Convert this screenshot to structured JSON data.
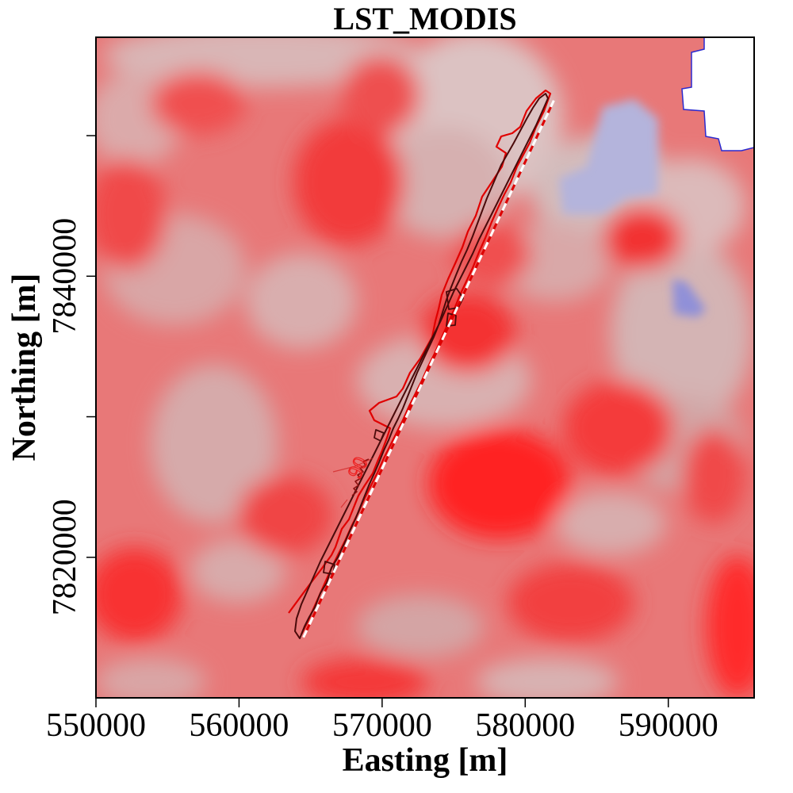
{
  "map": {
    "title": "LST_MODIS",
    "xlabel": "Easting [m]",
    "ylabel": "Northing [m]",
    "x_range": [
      550000,
      596000
    ],
    "y_range": [
      7810000,
      7857000
    ],
    "x_ticks": [
      550000,
      560000,
      570000,
      580000,
      590000
    ],
    "x_tick_labels": [
      "550000",
      "560000",
      "570000",
      "580000",
      "590000"
    ],
    "y_ticks_labeled": [
      7820000,
      7840000
    ],
    "y_tick_labels": [
      "7820000",
      "7840000"
    ],
    "y_ticks_minor": [
      7830000,
      7850000
    ],
    "contour_label": "90",
    "colors": {
      "warm": "#ff1a1a",
      "mid": "#d8b0b0",
      "cool": "#9a9ad8",
      "nodata": "#ffffff",
      "contour_dark": "#4a0a0a",
      "contour_red": "#e00000",
      "transect": "#ffffff"
    },
    "transect": {
      "start": [
        564500,
        7814300
      ],
      "end": [
        582000,
        7852500
      ]
    }
  }
}
